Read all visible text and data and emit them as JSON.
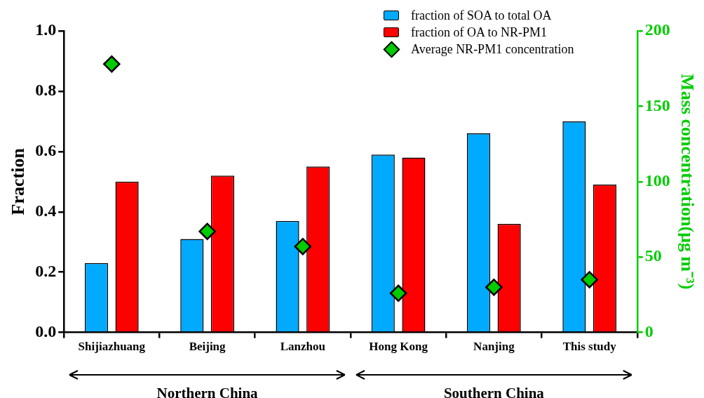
{
  "chart_data": {
    "type": "bar",
    "ylabel": "Fraction",
    "y2label": "Mass concentration(μg m⁻³)",
    "categories": [
      "Shijiazhuang",
      "Beijing",
      "Lanzhou",
      "Hong Kong",
      "Nanjing",
      "This study"
    ],
    "series": [
      {
        "name": "fraction of SOA to total OA",
        "color": "#00aaff",
        "values": [
          0.23,
          0.31,
          0.37,
          0.59,
          0.66,
          0.7
        ]
      },
      {
        "name": "fraction of OA to NR-PM1",
        "color": "#ff0000",
        "values": [
          0.5,
          0.52,
          0.55,
          0.58,
          0.36,
          0.49
        ]
      },
      {
        "name": "Average NR-PM1 concentration",
        "type": "scatter",
        "axis": "y2",
        "marker": "diamond",
        "color": "#00cc00",
        "values": [
          178,
          67,
          57,
          26,
          30,
          35
        ]
      }
    ],
    "ylim": [
      0,
      1
    ],
    "yticks": [
      {
        "value": 0,
        "label": "0.0"
      },
      {
        "value": 0.2,
        "label": "0.2"
      },
      {
        "value": 0.4,
        "label": "0.4"
      },
      {
        "value": 0.6,
        "label": "0.6"
      },
      {
        "value": 0.8,
        "label": "0.8"
      },
      {
        "value": 1,
        "label": "1.0"
      }
    ],
    "y2lim": [
      0,
      200
    ],
    "y2ticks": [
      0,
      50,
      100,
      150,
      200
    ],
    "grid": false,
    "legend": "top right",
    "annotations": [
      "Northern China",
      "Southern China"
    ]
  }
}
